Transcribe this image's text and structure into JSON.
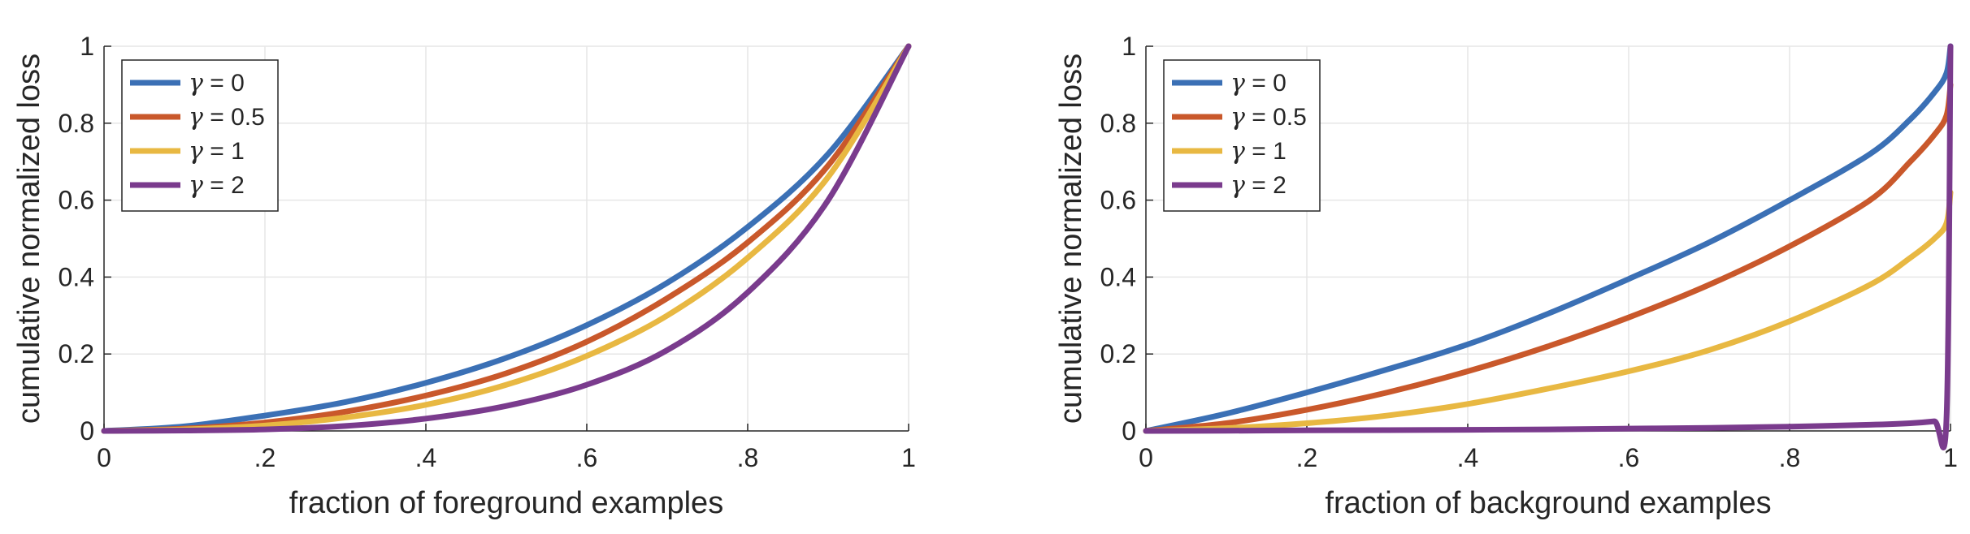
{
  "chart_data": [
    {
      "type": "line",
      "xlabel": "fraction of foreground examples",
      "ylabel": "cumulative normalized loss",
      "xlim": [
        0,
        1
      ],
      "ylim": [
        0,
        1
      ],
      "xticks": [
        "0",
        ".2",
        ".4",
        ".6",
        ".8",
        "1"
      ],
      "yticks": [
        "0",
        "0.2",
        "0.4",
        "0.6",
        "0.8",
        "1"
      ],
      "grid": true,
      "legend": "top-left",
      "x": [
        0,
        0.1,
        0.2,
        0.3,
        0.4,
        0.5,
        0.6,
        0.7,
        0.8,
        0.9,
        1.0
      ],
      "series": [
        {
          "symbol": "γ",
          "label": " = 0",
          "color": "#3b70b5",
          "values": [
            0,
            0.012,
            0.04,
            0.075,
            0.125,
            0.19,
            0.275,
            0.385,
            0.53,
            0.72,
            1.0
          ]
        },
        {
          "symbol": "γ",
          "label": " = 0.5",
          "color": "#c9582b",
          "values": [
            0,
            0.006,
            0.022,
            0.05,
            0.092,
            0.15,
            0.232,
            0.345,
            0.49,
            0.69,
            1.0
          ]
        },
        {
          "symbol": "γ",
          "label": " = 1",
          "color": "#e8b842",
          "values": [
            0,
            0.004,
            0.014,
            0.035,
            0.068,
            0.12,
            0.195,
            0.3,
            0.45,
            0.66,
            1.0
          ]
        },
        {
          "symbol": "γ",
          "label": " = 2",
          "color": "#7a3b8d",
          "values": [
            0,
            0.001,
            0.004,
            0.013,
            0.032,
            0.065,
            0.12,
            0.21,
            0.36,
            0.6,
            1.0
          ]
        }
      ]
    },
    {
      "type": "line",
      "xlabel": "fraction of background examples",
      "ylabel": "cumulative normalized loss",
      "xlim": [
        0,
        1
      ],
      "ylim": [
        0,
        1
      ],
      "xticks": [
        "0",
        ".2",
        ".4",
        ".6",
        ".8",
        "1"
      ],
      "yticks": [
        "0",
        "0.2",
        "0.4",
        "0.6",
        "0.8",
        "1"
      ],
      "grid": true,
      "legend": "top-left",
      "x": [
        0,
        0.1,
        0.2,
        0.3,
        0.4,
        0.5,
        0.6,
        0.7,
        0.8,
        0.9,
        0.95,
        0.98,
        0.995,
        1.0
      ],
      "series": [
        {
          "symbol": "γ",
          "label": " = 0",
          "color": "#3b70b5",
          "values": [
            0,
            0.045,
            0.1,
            0.16,
            0.225,
            0.305,
            0.395,
            0.49,
            0.6,
            0.72,
            0.81,
            0.88,
            0.93,
            1.0
          ]
        },
        {
          "symbol": "γ",
          "label": " = 0.5",
          "color": "#c9582b",
          "values": [
            0,
            0.02,
            0.055,
            0.1,
            0.155,
            0.22,
            0.295,
            0.38,
            0.48,
            0.6,
            0.7,
            0.77,
            0.82,
            0.9
          ]
        },
        {
          "symbol": "γ",
          "label": " = 1",
          "color": "#e8b842",
          "values": [
            0,
            0.007,
            0.02,
            0.04,
            0.07,
            0.11,
            0.155,
            0.21,
            0.285,
            0.38,
            0.45,
            0.5,
            0.54,
            0.62
          ]
        },
        {
          "symbol": "γ",
          "label": " = 2",
          "color": "#7a3b8d",
          "values": [
            0,
            0.0005,
            0.0015,
            0.002,
            0.003,
            0.004,
            0.006,
            0.008,
            0.011,
            0.016,
            0.02,
            0.025,
            0.03,
            1.0
          ]
        }
      ]
    }
  ]
}
